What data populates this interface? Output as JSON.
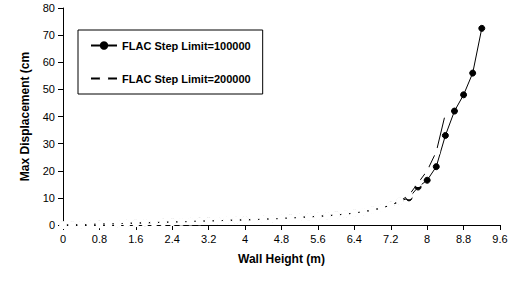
{
  "chart_data": {
    "type": "line",
    "x_label": "Wall Height (m)",
    "y_label": "Max Displacement (cm",
    "xlim": [
      0,
      9.6
    ],
    "xticks": [
      0,
      0.8,
      1.6,
      2.4,
      3.2,
      4,
      4.8,
      5.6,
      6.4,
      7.2,
      8,
      8.8,
      9.6
    ],
    "ylim": [
      0,
      80
    ],
    "yticks": [
      0,
      10,
      20,
      30,
      40,
      50,
      60,
      70,
      80
    ],
    "grid": false,
    "legend": "top-left",
    "series": [
      {
        "name": "FLAC Step Limit=100000",
        "color": "#000000",
        "marker": "circle",
        "line_style": "solid",
        "x": [
          0,
          0.2,
          0.4,
          0.6,
          0.8,
          1.0,
          1.2,
          1.4,
          1.6,
          1.8,
          2.0,
          2.2,
          2.4,
          2.6,
          2.8,
          3.0,
          3.2,
          3.4,
          3.6,
          3.8,
          4.0,
          4.2,
          4.4,
          4.6,
          4.8,
          5.0,
          5.2,
          5.4,
          5.6,
          5.8,
          6.0,
          6.2,
          6.4,
          6.6,
          6.8,
          7.0,
          7.2,
          7.4,
          7.6,
          7.8,
          8.0,
          8.2,
          8.4,
          8.6,
          8.8,
          9.0,
          9.2
        ],
        "values": [
          0,
          0,
          0.1,
          0.2,
          0.3,
          0.4,
          0.5,
          0.6,
          0.7,
          0.8,
          0.9,
          1.0,
          1.1,
          1.2,
          1.3,
          1.4,
          1.5,
          1.6,
          1.7,
          1.8,
          1.9,
          2.0,
          2.1,
          2.3,
          2.4,
          2.6,
          2.8,
          3.0,
          3.2,
          3.4,
          3.7,
          4.0,
          4.4,
          4.9,
          5.5,
          6.3,
          7.3,
          8.8,
          10,
          14,
          16.5,
          21.5,
          33,
          42,
          48,
          56,
          72.5
        ]
      },
      {
        "name": "FLAC Step Limit=200000",
        "color": "#000000",
        "marker": "circle_open",
        "line_style": "solid",
        "x": [
          0,
          0.2,
          0.4,
          0.6,
          0.8,
          1.0,
          1.2,
          1.4,
          1.6,
          1.8,
          2.0,
          2.2,
          2.4,
          2.6,
          2.8,
          3.0,
          3.2,
          3.4,
          3.6,
          3.8,
          4.0,
          4.2,
          4.4,
          4.6,
          4.8,
          5.0,
          5.2,
          5.4,
          5.6,
          5.8,
          6.0,
          6.2,
          6.4,
          6.6,
          6.8,
          7.0,
          7.2,
          7.4,
          7.6,
          7.8,
          8.0,
          8.2,
          8.4
        ],
        "values": [
          0,
          0,
          0.1,
          0.2,
          0.3,
          0.4,
          0.5,
          0.6,
          0.7,
          0.8,
          0.9,
          1.0,
          1.1,
          1.2,
          1.3,
          1.4,
          1.5,
          1.6,
          1.7,
          1.8,
          1.9,
          2.0,
          2.1,
          2.3,
          2.4,
          2.6,
          2.8,
          3.0,
          3.2,
          3.4,
          3.7,
          4.0,
          4.4,
          4.9,
          5.5,
          6.3,
          7.3,
          8.8,
          11,
          15.5,
          20,
          27,
          41
        ]
      }
    ]
  }
}
